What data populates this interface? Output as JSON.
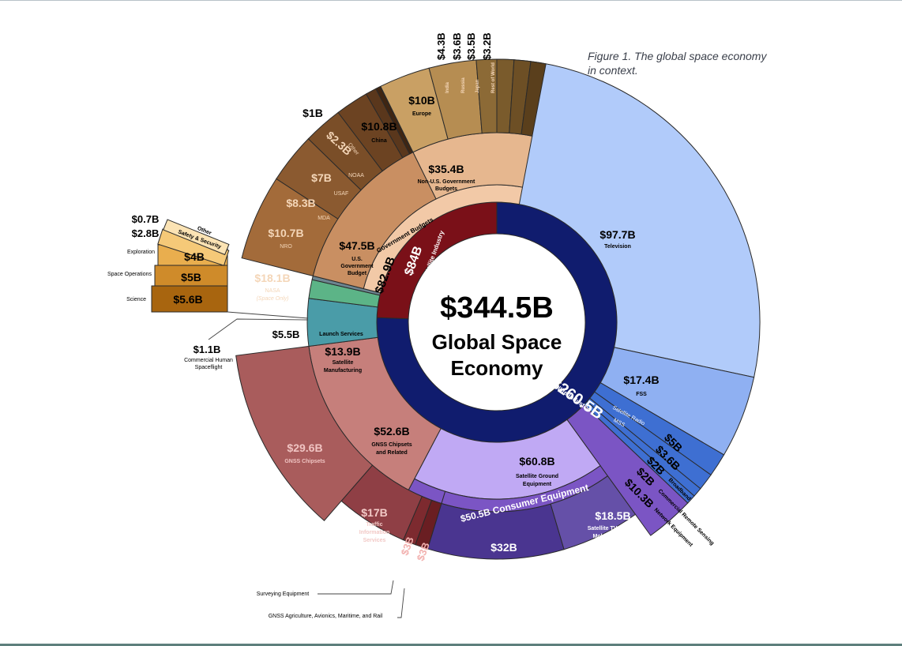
{
  "caption": "Figure 1. The global space economy in context.",
  "colors": {
    "navy": "#101c6e",
    "maroon": "#7a1018",
    "television": "#b1cbfa",
    "fss": "#8fb0f2",
    "smallsat": "#3e6fd2",
    "consumer": "#7b55c4",
    "ground": "#c0a9f4",
    "nav_devices": "#4a3590",
    "tv_dishes": "#6550a8",
    "gnss_related": "#c67f7b",
    "gnss_chipsets": "#a95c5c",
    "traffic": "#8f3f45",
    "small_gnss": "#6a1e22",
    "manufacturing": "#4a9ca8",
    "launch": "#5cb487",
    "gov_budgets": "#f2c9a7",
    "us_gov": "#c98f62",
    "nonus": "#e6b78f"
  },
  "chart_data": {
    "type": "sunburst",
    "title": "The global space economy in context",
    "center_value": "$344.5B",
    "center_label_line1": "Global Space",
    "center_label_line2": "Economy",
    "total": 344.5,
    "sectors": [
      {
        "name": "Satellite Industry",
        "value": 260.5,
        "label": "$260.5B",
        "sub_label": "Satellite Industry"
      },
      {
        "name": "Non-Satellite Industry",
        "value": 84,
        "label": "$84B",
        "sub_label": "Non-Satellite Industry"
      }
    ],
    "mid_ring": [
      {
        "value_label": "$97.7B",
        "name": "Television",
        "value": 97.7
      },
      {
        "value_label": "$17.4B",
        "name": "FSS",
        "value": 17.4
      },
      {
        "value_label": "$5B",
        "name": "Satellite Radio",
        "value": 5
      },
      {
        "value_label": "$3.6B",
        "name": "MSS",
        "value": 3.6
      },
      {
        "value_label": "$2B",
        "name": "Broadband",
        "value": 2
      },
      {
        "value_label": "$2B",
        "name": "Commercial Remote Sensing",
        "value": 2
      },
      {
        "value_label": "$10.3B",
        "name": "Network Equipment",
        "value": 10.3
      },
      {
        "value_label": "$60.8B",
        "name": "Satellite Ground Equipment",
        "value": 60.8
      },
      {
        "value_label": "$52.6B",
        "name": "GNSS Chipsets and Related",
        "value": 52.6
      },
      {
        "value_label": "$13.9B",
        "name": "Satellite Manufacturing",
        "value": 13.9
      },
      {
        "value_label": "$5.5B",
        "name": "Launch Services",
        "value": 5.5
      },
      {
        "value_label": "$1.1B",
        "name": "Commercial Human Spaceflight",
        "value": 1.1
      },
      {
        "value_label": "$82.9B",
        "name": "Government Budgets",
        "value": 82.9
      }
    ],
    "consumer_equipment": {
      "value_label": "$50.5B",
      "name": "Consumer Equipment",
      "value": 50.5
    },
    "outer_ring": [
      {
        "value_label": "$18.5B",
        "name": "Satellite TV Dishes, Mobile Satellite Terminals, etc.",
        "value": 18.5
      },
      {
        "value_label": "$32B",
        "name": "Personal Navigation Devices and In-Vehicle Systems",
        "value": 32
      },
      {
        "value_label": "$3B",
        "name": "GNSS Agriculture, Avionics, Maritime, and Rail",
        "value": 3
      },
      {
        "value_label": "$3B",
        "name": "Surveying Equipment",
        "value": 3
      },
      {
        "value_label": "$17B",
        "name": "Traffic Information Services",
        "value": 17
      },
      {
        "value_label": "$29.6B",
        "name": "GNSS Chipsets",
        "value": 29.6
      }
    ],
    "government": [
      {
        "value_label": "$47.5B",
        "name": "U.S. Government Budget",
        "value": 47.5
      },
      {
        "value_label": "$35.4B",
        "name": "Non-U.S. Government Budgets",
        "value": 35.4
      }
    ],
    "us_agencies": [
      {
        "value_label": "$18.1B",
        "name": "NASA",
        "sub": "(Space Only)",
        "value": 18.1
      },
      {
        "value_label": "$10.7B",
        "name": "NRO",
        "value": 10.7
      },
      {
        "value_label": "$8.3B",
        "name": "MDA",
        "value": 8.3
      },
      {
        "value_label": "$7B",
        "name": "USAF",
        "value": 7
      },
      {
        "value_label": "$2.3B",
        "name": "NOAA",
        "value": 2.3
      },
      {
        "value_label": "$1B",
        "name": "Other",
        "value": 1
      }
    ],
    "nasa_breakdown": [
      {
        "value_label": "$5.6B",
        "name": "Science",
        "value": 5.6
      },
      {
        "value_label": "$5B",
        "name": "Space Operations",
        "value": 5
      },
      {
        "value_label": "$4B",
        "name": "Exploration",
        "value": 4
      },
      {
        "value_label": "$2.8B",
        "name": "Safety & Security",
        "value": 2.8
      },
      {
        "value_label": "$0.7B",
        "name": "Other",
        "value": 0.7
      }
    ],
    "nonus_countries": [
      {
        "value_label": "$10.8B",
        "name": "China",
        "value": 10.8
      },
      {
        "value_label": "$10B",
        "name": "Europe",
        "value": 10
      },
      {
        "value_label": "$4.3B",
        "name": "India",
        "value": 4.3
      },
      {
        "value_label": "$3.6B",
        "name": "Russia",
        "value": 3.6
      },
      {
        "value_label": "$3.5B",
        "name": "Japan",
        "value": 3.5
      },
      {
        "value_label": "$3.2B",
        "name": "Rest of World",
        "value": 3.2
      }
    ]
  }
}
